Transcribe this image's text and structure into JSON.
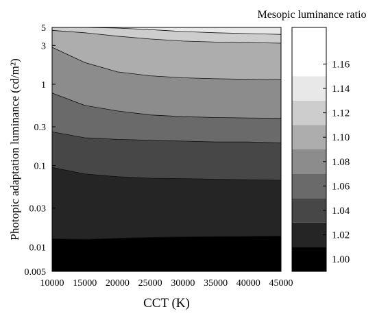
{
  "chart_data": {
    "type": "contour",
    "title": "",
    "xlabel": "CCT (K)",
    "ylabel": "Photopic adaptation luminance (cd/m²)",
    "colorbar_label": "Mesopic luminance ratio",
    "xlim": [
      10000,
      45000
    ],
    "ylim": [
      0.005,
      5
    ],
    "yscale": "log",
    "x_ticks": [
      10000,
      15000,
      20000,
      25000,
      30000,
      35000,
      40000,
      45000
    ],
    "y_ticks": [
      0.005,
      0.01,
      0.03,
      0.1,
      0.3,
      1,
      3,
      5
    ],
    "y_tick_labels": [
      "0.005",
      "0.01",
      "0.03",
      "0.1",
      "0.3",
      "1",
      "3",
      "5"
    ],
    "colorbar_ticks": [
      "1.00",
      "1.02",
      "1.04",
      "1.06",
      "1.08",
      "1.10",
      "1.12",
      "1.14",
      "1.16"
    ],
    "levels": [
      1.01,
      1.03,
      1.05,
      1.07,
      1.09,
      1.11,
      1.13,
      1.15,
      1.17
    ],
    "band_colors": [
      "#000000",
      "#252525",
      "#474747",
      "#6a6a6a",
      "#8c8c8c",
      "#adadad",
      "#cdcdcd",
      "#e8e8e8",
      "#ffffff"
    ],
    "contours": [
      {
        "level": 1.01,
        "x": [
          10000,
          15000,
          20000,
          25000,
          30000,
          35000,
          40000,
          45000
        ],
        "y": [
          0.0126,
          0.0124,
          0.0128,
          0.0131,
          0.0133,
          0.0134,
          0.0135,
          0.0136
        ]
      },
      {
        "level": 1.03,
        "x": [
          10000,
          15000,
          20000,
          25000,
          30000,
          35000,
          40000,
          45000
        ],
        "y": [
          0.095,
          0.079,
          0.073,
          0.07,
          0.069,
          0.068,
          0.067,
          0.066
        ]
      },
      {
        "level": 1.05,
        "x": [
          10000,
          15000,
          20000,
          25000,
          30000,
          35000,
          40000,
          45000
        ],
        "y": [
          0.26,
          0.22,
          0.21,
          0.205,
          0.2,
          0.195,
          0.195,
          0.19
        ]
      },
      {
        "level": 1.07,
        "x": [
          10000,
          15000,
          20000,
          25000,
          30000,
          35000,
          40000,
          45000
        ],
        "y": [
          0.78,
          0.55,
          0.47,
          0.42,
          0.4,
          0.39,
          0.385,
          0.38
        ]
      },
      {
        "level": 1.09,
        "x": [
          10000,
          15000,
          20000,
          25000,
          30000,
          35000,
          40000,
          45000
        ],
        "y": [
          2.85,
          1.85,
          1.42,
          1.27,
          1.2,
          1.17,
          1.15,
          1.14
        ]
      },
      {
        "level": 1.11,
        "x": [
          10000,
          15000,
          20000,
          25000,
          30000,
          35000,
          40000,
          45000
        ],
        "y": [
          4.6,
          4.3,
          3.9,
          3.6,
          3.4,
          3.3,
          3.25,
          3.2
        ]
      },
      {
        "level": 1.13,
        "x": [
          11500,
          15000,
          20000,
          25000,
          30000,
          35000,
          40000,
          45000
        ],
        "y": [
          5.0,
          5.0,
          4.9,
          4.7,
          4.45,
          4.3,
          4.2,
          4.1
        ]
      }
    ]
  }
}
